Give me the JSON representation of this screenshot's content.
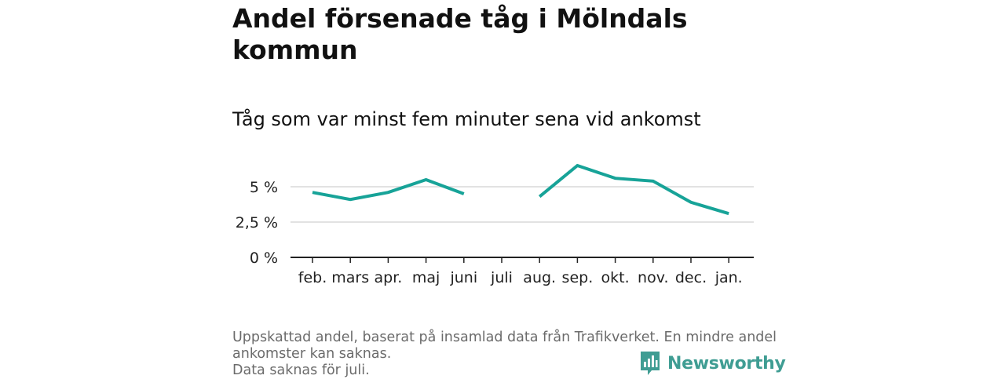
{
  "title": "Andel försenade tåg i Mölndals kommun",
  "subtitle": "Tåg som var minst fem minuter sena vid ankomst",
  "colors": {
    "line": "#17a398",
    "grid": "#d9d9d9",
    "axis": "#222222",
    "brand": "#3f9d93"
  },
  "chart_data": {
    "type": "line",
    "categories": [
      "feb.",
      "mars",
      "apr.",
      "maj",
      "juni",
      "juli",
      "aug.",
      "sep.",
      "okt.",
      "nov.",
      "dec.",
      "jan."
    ],
    "series": [
      {
        "values": [
          4.6,
          4.1,
          4.6,
          5.5,
          4.5,
          null,
          4.3,
          6.5,
          5.6,
          5.4,
          3.9,
          3.1
        ]
      }
    ],
    "ylim": [
      0,
      6.5
    ],
    "yticks": [
      0,
      2.5,
      5
    ],
    "ytick_labels": [
      "0 %",
      "2,5 %",
      "5 %"
    ],
    "grid": true
  },
  "footnote": {
    "line1": "Uppskattad andel, baserat på insamlad data från Trafikverket. En mindre andel",
    "line2": "ankomster kan saknas.",
    "line3": "Data saknas för juli."
  },
  "brand": {
    "name": "Newsworthy",
    "icon": "newsworthy-logo-icon"
  }
}
